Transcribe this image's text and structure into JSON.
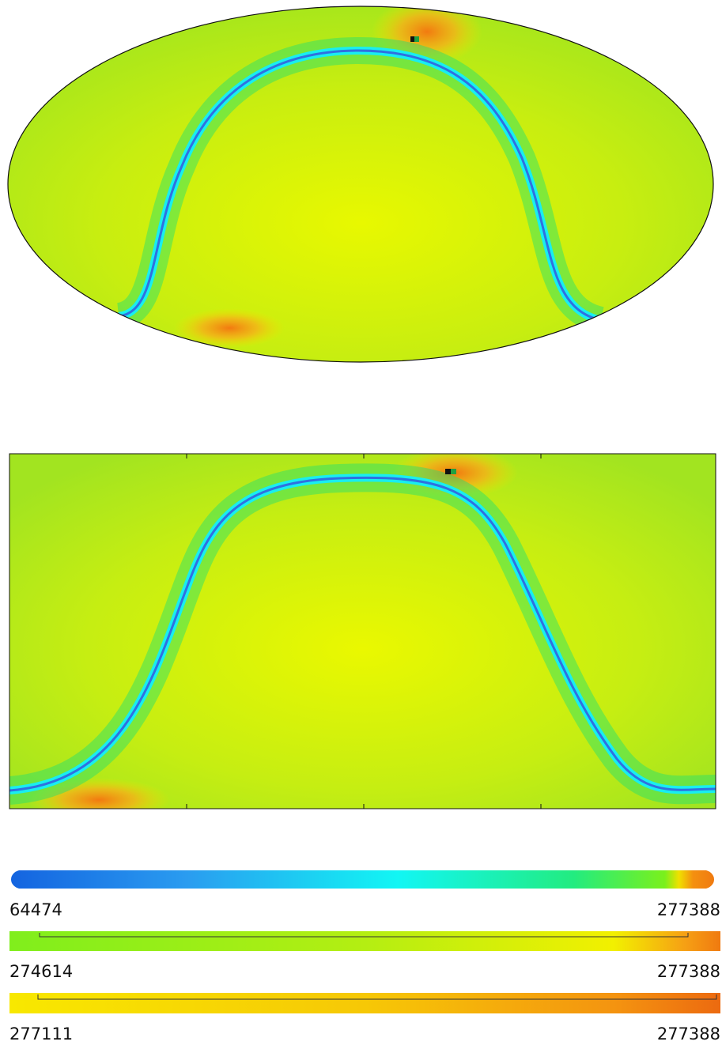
{
  "colorbars": [
    {
      "min_label": "64474",
      "max_label": "277388"
    },
    {
      "min_label": "274614",
      "max_label": "277388"
    },
    {
      "min_label": "277111",
      "max_label": "277388"
    }
  ]
}
